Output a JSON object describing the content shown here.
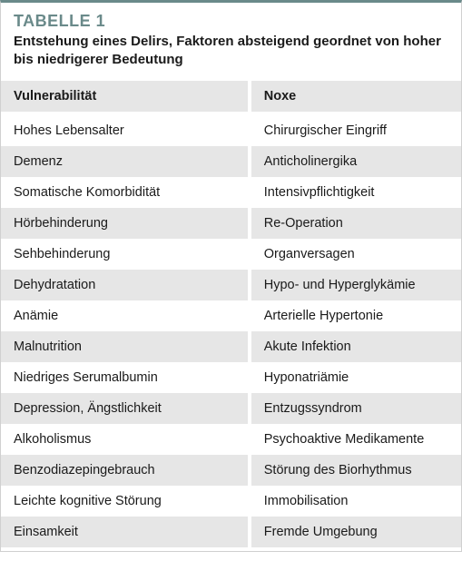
{
  "table": {
    "label": "TABELLE 1",
    "caption": "Entstehung eines Delirs, Faktoren absteigend geordnet von hoher bis niedrigerer Bedeutung",
    "columns": [
      "Vulnerabilität",
      "Noxe"
    ],
    "rows": [
      [
        "Hohes Lebensalter",
        "Chirurgischer Eingriff"
      ],
      [
        "Demenz",
        "Anticholinergika"
      ],
      [
        "Somatische Komorbidität",
        "Intensivpflichtigkeit"
      ],
      [
        "Hörbehinderung",
        "Re-Operation"
      ],
      [
        "Sehbehinderung",
        "Organversagen"
      ],
      [
        "Dehydratation",
        "Hypo- und Hyperglykämie"
      ],
      [
        "Anämie",
        "Arterielle Hypertonie"
      ],
      [
        "Malnutrition",
        "Akute Infektion"
      ],
      [
        "Niedriges Serumalbumin",
        "Hyponatriämie"
      ],
      [
        "Depression, Ängstlichkeit",
        "Entzugssyndrom"
      ],
      [
        "Alkoholismus",
        "Psychoaktive Medikamente"
      ],
      [
        "Benzodiazepingebrauch",
        "Störung des Biorhythmus"
      ],
      [
        "Leichte kognitive Störung",
        "Immobilisation"
      ],
      [
        "Einsamkeit",
        "Fremde Umgebung"
      ]
    ],
    "style": {
      "accent_color": "#6a8a8a",
      "header_bg": "#e6e6e6",
      "row_even_bg": "#e6e6e6",
      "row_odd_bg": "#ffffff",
      "border_color": "#d0d0d0",
      "label_fontsize": 18,
      "caption_fontsize": 15,
      "cell_fontsize": 14.5,
      "col0_width_pct": 54
    }
  }
}
